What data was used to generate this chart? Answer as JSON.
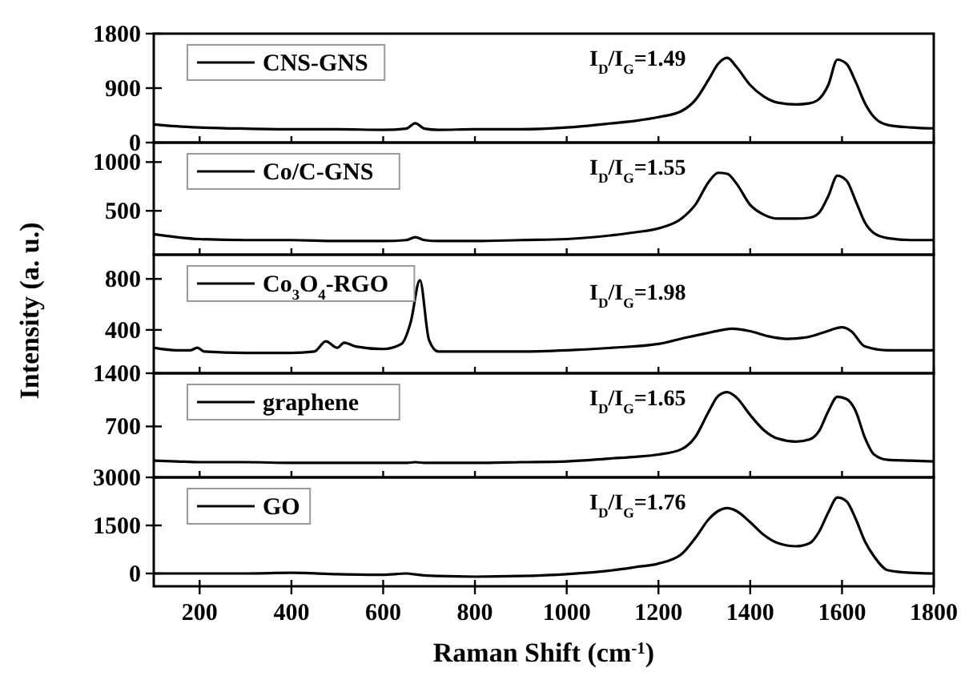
{
  "chart_data": [
    {
      "type": "line",
      "legend": "top left",
      "tick_labels": "y",
      "xlim": [
        100,
        1800
      ],
      "xticks": [
        200,
        400,
        600,
        800,
        1000,
        1200,
        1400,
        1600,
        1800
      ],
      "ylim": [
        0,
        1800
      ],
      "yticks": [
        0,
        900,
        1800
      ],
      "annotations": [
        "I$_{D}$/I$_{G}$=1.49"
      ],
      "x": [
        100,
        150,
        200,
        300,
        400,
        500,
        600,
        650,
        670,
        690,
        720,
        800,
        900,
        1000,
        1100,
        1150,
        1200,
        1250,
        1280,
        1310,
        1330,
        1350,
        1370,
        1400,
        1430,
        1460,
        1500,
        1530,
        1550,
        1570,
        1590,
        1610,
        1630,
        1650,
        1670,
        1700,
        1750,
        1800
      ],
      "series": [
        {
          "name": "CNS-GNS",
          "color": "#000000",
          "values": [
            300,
            270,
            250,
            230,
            220,
            220,
            210,
            230,
            320,
            230,
            210,
            220,
            220,
            250,
            320,
            360,
            420,
            520,
            700,
            1050,
            1300,
            1400,
            1250,
            950,
            760,
            660,
            630,
            650,
            720,
            950,
            1370,
            1300,
            1000,
            650,
            420,
            290,
            250,
            235
          ]
        }
      ]
    },
    {
      "type": "line",
      "legend": "top left",
      "tick_labels": "y",
      "xlim": [
        100,
        1800
      ],
      "xticks": [
        200,
        400,
        600,
        800,
        1000,
        1200,
        1400,
        1600,
        1800
      ],
      "ylim": [
        50,
        1200
      ],
      "yticks": [
        500,
        1000
      ],
      "annotations": [
        "I$_{D}$/I$_{G}$=1.55"
      ],
      "x": [
        100,
        150,
        200,
        300,
        400,
        500,
        600,
        650,
        670,
        690,
        720,
        800,
        900,
        1000,
        1100,
        1150,
        1200,
        1250,
        1280,
        1310,
        1330,
        1350,
        1370,
        1400,
        1430,
        1460,
        1500,
        1530,
        1550,
        1570,
        1590,
        1610,
        1630,
        1650,
        1670,
        1700,
        1750,
        1800
      ],
      "series": [
        {
          "name": "Co/C-GNS",
          "color": "#000000",
          "values": [
            260,
            230,
            210,
            200,
            200,
            190,
            190,
            200,
            230,
            200,
            190,
            190,
            200,
            210,
            250,
            280,
            320,
            420,
            560,
            800,
            890,
            880,
            780,
            560,
            460,
            420,
            420,
            430,
            480,
            650,
            860,
            810,
            600,
            380,
            270,
            220,
            200,
            200
          ]
        }
      ]
    },
    {
      "type": "line",
      "legend": "top left",
      "tick_labels": "y",
      "xlim": [
        100,
        1800
      ],
      "xticks": [
        200,
        400,
        600,
        800,
        1000,
        1200,
        1400,
        1600,
        1800
      ],
      "ylim": [
        60,
        990
      ],
      "yticks": [
        400,
        800
      ],
      "ylabel": "Intensity (a. u.)",
      "annotations": [
        "I$_{D}$/I$_{G}$=1.98"
      ],
      "x": [
        100,
        150,
        180,
        195,
        210,
        300,
        400,
        450,
        475,
        500,
        515,
        540,
        600,
        640,
        660,
        680,
        700,
        720,
        800,
        900,
        1000,
        1100,
        1200,
        1260,
        1300,
        1340,
        1360,
        1400,
        1440,
        1480,
        1520,
        1560,
        1600,
        1620,
        1650,
        1700,
        1750,
        1800
      ],
      "series": [
        {
          "name": "Co$_{3}$O$_{4}$-RGO",
          "color": "#000000",
          "values": [
            260,
            240,
            240,
            260,
            230,
            220,
            220,
            230,
            310,
            260,
            300,
            270,
            250,
            290,
            460,
            790,
            320,
            230,
            230,
            230,
            240,
            260,
            290,
            340,
            370,
            400,
            410,
            390,
            350,
            330,
            340,
            380,
            420,
            390,
            270,
            240,
            240,
            240
          ]
        }
      ]
    },
    {
      "type": "line",
      "legend": "top left",
      "tick_labels": "y",
      "xlim": [
        100,
        1800
      ],
      "xticks": [
        200,
        400,
        600,
        800,
        1000,
        1200,
        1400,
        1600,
        1800
      ],
      "ylim": [
        30,
        1400
      ],
      "yticks": [
        700,
        1400
      ],
      "annotations": [
        "I$_{D}$/I$_{G}$=1.65"
      ],
      "x": [
        100,
        150,
        200,
        300,
        400,
        500,
        600,
        650,
        670,
        690,
        720,
        800,
        900,
        1000,
        1100,
        1150,
        1200,
        1250,
        1280,
        1310,
        1330,
        1350,
        1370,
        1400,
        1430,
        1460,
        1500,
        1530,
        1550,
        1570,
        1590,
        1610,
        1630,
        1650,
        1670,
        1700,
        1750,
        1800
      ],
      "series": [
        {
          "name": "graphene",
          "color": "#000000",
          "values": [
            250,
            240,
            230,
            230,
            220,
            220,
            220,
            220,
            230,
            220,
            220,
            220,
            230,
            240,
            280,
            300,
            330,
            400,
            560,
            900,
            1100,
            1150,
            1080,
            850,
            650,
            540,
            500,
            530,
            640,
            900,
            1090,
            1060,
            900,
            550,
            330,
            260,
            250,
            240
          ]
        }
      ]
    },
    {
      "type": "line",
      "legend": "top left",
      "xlim": [
        100,
        1800
      ],
      "xticks": [
        200,
        400,
        600,
        800,
        1000,
        1200,
        1400,
        1600,
        1800
      ],
      "ylim": [
        -400,
        3000
      ],
      "yticks": [
        0,
        1500,
        3000
      ],
      "xlabel": "Raman Shift (cm$^{-1}$)",
      "annotations": [
        "I$_{D}$/I$_{G}$=1.76"
      ],
      "x": [
        100,
        150,
        200,
        300,
        400,
        500,
        600,
        650,
        670,
        690,
        720,
        800,
        900,
        1000,
        1100,
        1150,
        1200,
        1250,
        1280,
        1310,
        1330,
        1350,
        1370,
        1400,
        1430,
        1460,
        1500,
        1530,
        1550,
        1570,
        1590,
        1610,
        1630,
        1650,
        1670,
        1700,
        1750,
        1800
      ],
      "series": [
        {
          "name": "GO",
          "color": "#000000",
          "values": [
            0,
            0,
            0,
            0,
            20,
            -20,
            -40,
            0,
            -30,
            -60,
            -80,
            -100,
            -80,
            -20,
            100,
            200,
            310,
            600,
            1100,
            1700,
            1950,
            2040,
            1950,
            1600,
            1200,
            950,
            850,
            950,
            1300,
            1900,
            2370,
            2250,
            1700,
            1000,
            530,
            100,
            20,
            0
          ]
        }
      ]
    }
  ]
}
